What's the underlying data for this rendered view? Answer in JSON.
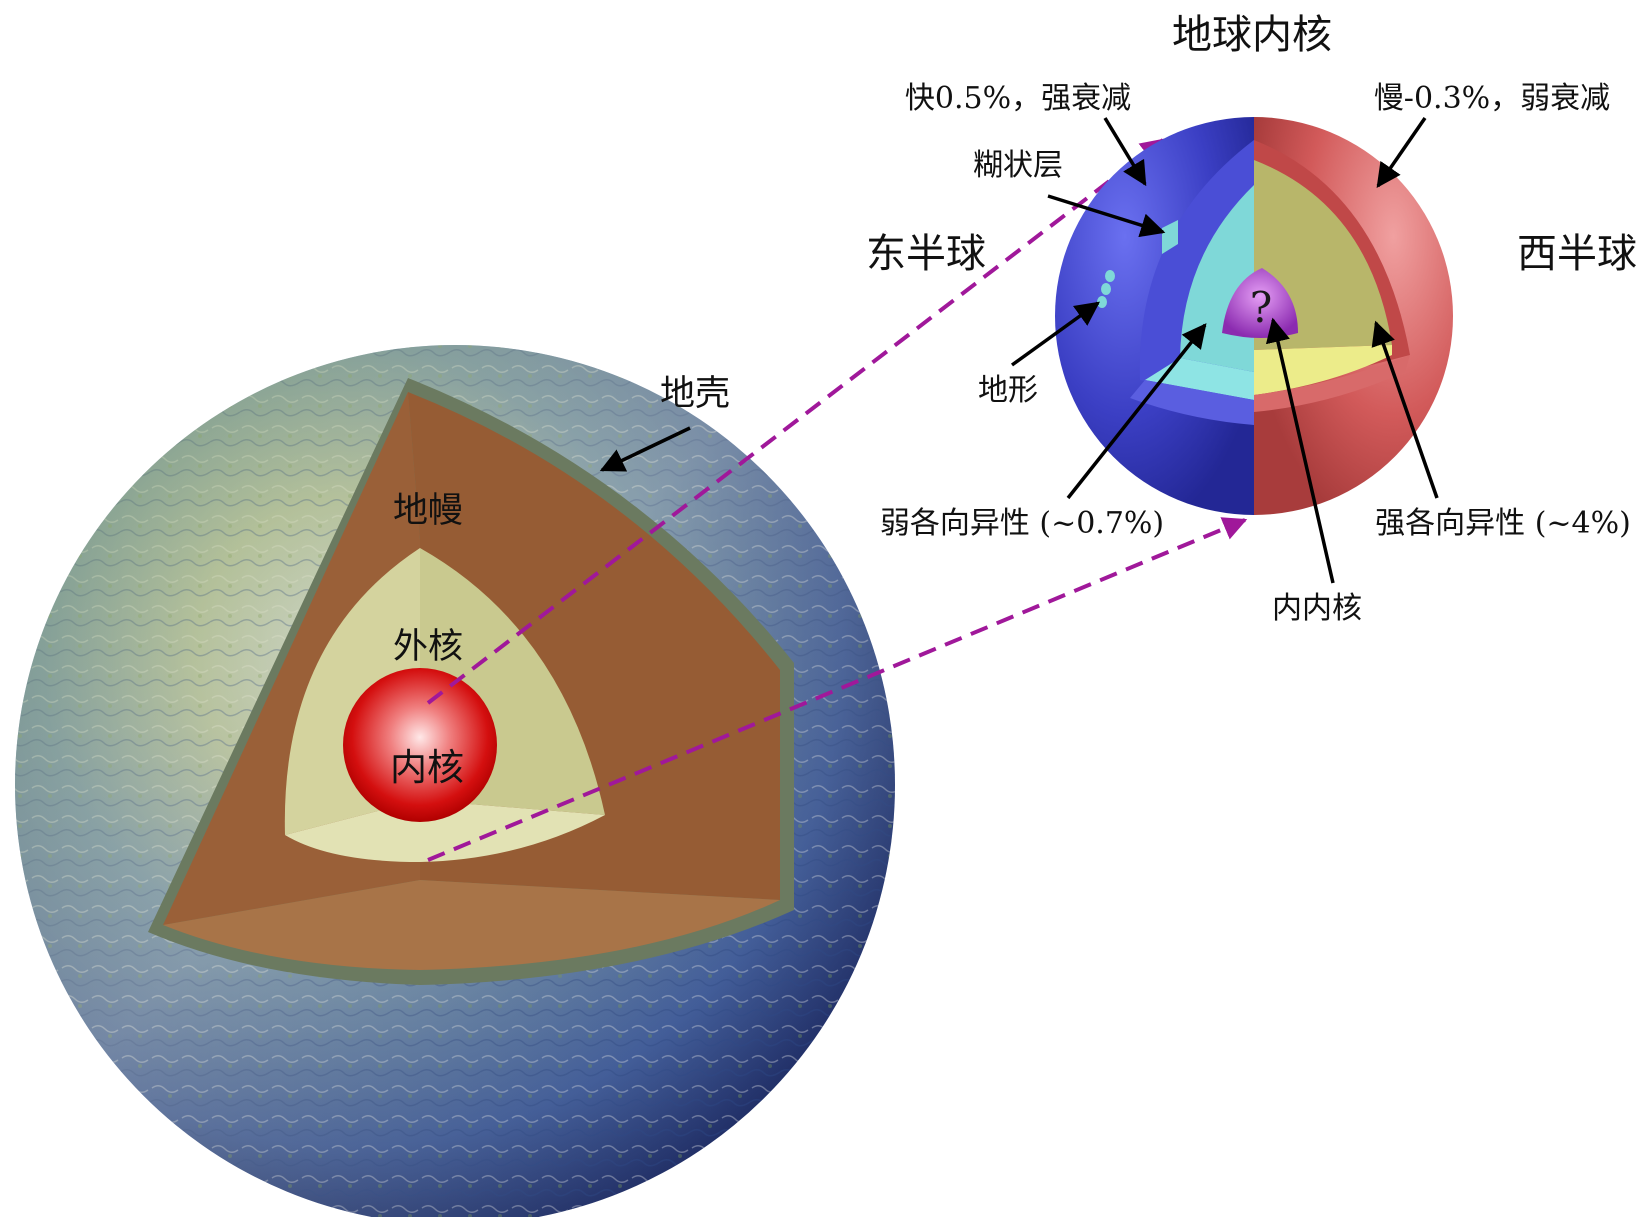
{
  "earth": {
    "crust_label": "地壳",
    "mantle_label": "地幔",
    "outer_core_label": "外核",
    "inner_core_label": "内核"
  },
  "inner_core_detail": {
    "title": "地球内核",
    "east_hemisphere": "东半球",
    "west_hemisphere": "西半球",
    "east_surface_note": "快0.5%，强衰减",
    "west_surface_note": "慢-0.3%，弱衰减",
    "mushy_layer": "糊状层",
    "topography": "地形",
    "weak_anisotropy": "弱各向异性 (~0.7%)",
    "strong_anisotropy": "强各向异性 (~4%)",
    "innermost_core": "内内核",
    "question_mark": "?"
  },
  "colors": {
    "east_blue": "#3b3fc4",
    "west_red": "#d25a5a",
    "cyan_layer": "#7fd8d8",
    "olive_layer": "#b8b66a",
    "mantle_brown": "#9a6038",
    "outer_core_cream": "#dcdca8",
    "inner_core_red": "#d40f0f",
    "innermost_purple": "#a23fc8",
    "dashed_magenta": "#a0189a"
  }
}
